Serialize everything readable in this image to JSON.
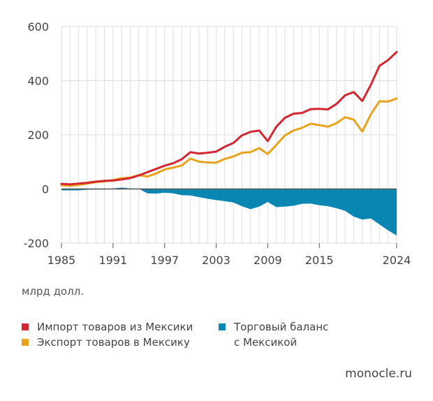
{
  "colors": {
    "imports": "#d22630",
    "exports": "#e9a21b",
    "balance": "#0a86b3",
    "grid": "#dedede",
    "axis": "#555555"
  },
  "unit_label": "млрд долл.",
  "legend": {
    "imports": "Импорт товаров из Мексики",
    "exports": "Экспорт товаров в Мексику",
    "balance_line1": "Торговый баланс",
    "balance_line2": "с Мексикой"
  },
  "source": "monocle.ru",
  "chart_data": {
    "type": "line",
    "title": "",
    "xlabel": "",
    "ylabel": "млрд долл.",
    "xlim": [
      1985,
      2024
    ],
    "ylim": [
      -200,
      600
    ],
    "yticks": [
      -200,
      0,
      200,
      400,
      600
    ],
    "xticks": [
      1985,
      1991,
      1997,
      2003,
      2009,
      2015,
      2024
    ],
    "grid": true,
    "x": [
      1985,
      1986,
      1987,
      1988,
      1989,
      1990,
      1991,
      1992,
      1993,
      1994,
      1995,
      1996,
      1997,
      1998,
      1999,
      2000,
      2001,
      2002,
      2003,
      2004,
      2005,
      2006,
      2007,
      2008,
      2009,
      2010,
      2011,
      2012,
      2013,
      2014,
      2015,
      2016,
      2017,
      2018,
      2019,
      2020,
      2021,
      2022,
      2023,
      2024
    ],
    "series": [
      {
        "name": "Импорт товаров из Мексики",
        "key": "imports",
        "chart": "line",
        "values": [
          19,
          17,
          20,
          23,
          27,
          30,
          31,
          35,
          40,
          50,
          62,
          74,
          86,
          95,
          110,
          136,
          131,
          134,
          138,
          156,
          170,
          198,
          211,
          216,
          177,
          230,
          263,
          278,
          281,
          295,
          296,
          294,
          314,
          346,
          358,
          325,
          385,
          455,
          476,
          506
        ]
      },
      {
        "name": "Экспорт товаров в Мексику",
        "key": "exports",
        "chart": "line",
        "values": [
          14,
          12,
          15,
          20,
          25,
          28,
          33,
          40,
          42,
          51,
          46,
          57,
          72,
          79,
          87,
          112,
          101,
          98,
          97,
          111,
          120,
          134,
          136,
          151,
          129,
          163,
          198,
          216,
          226,
          241,
          236,
          230,
          243,
          265,
          256,
          212,
          276,
          324,
          323,
          334
        ]
      },
      {
        "name": "Торговый баланс с Мексикой",
        "key": "balance",
        "chart": "area",
        "values": [
          -5,
          -5,
          -5,
          -3,
          -2,
          -2,
          2,
          5,
          2,
          1,
          -16,
          -17,
          -14,
          -16,
          -23,
          -24,
          -30,
          -36,
          -41,
          -45,
          -50,
          -64,
          -75,
          -65,
          -48,
          -67,
          -65,
          -62,
          -55,
          -54,
          -60,
          -64,
          -71,
          -81,
          -102,
          -113,
          -109,
          -131,
          -153,
          -172
        ]
      }
    ]
  }
}
